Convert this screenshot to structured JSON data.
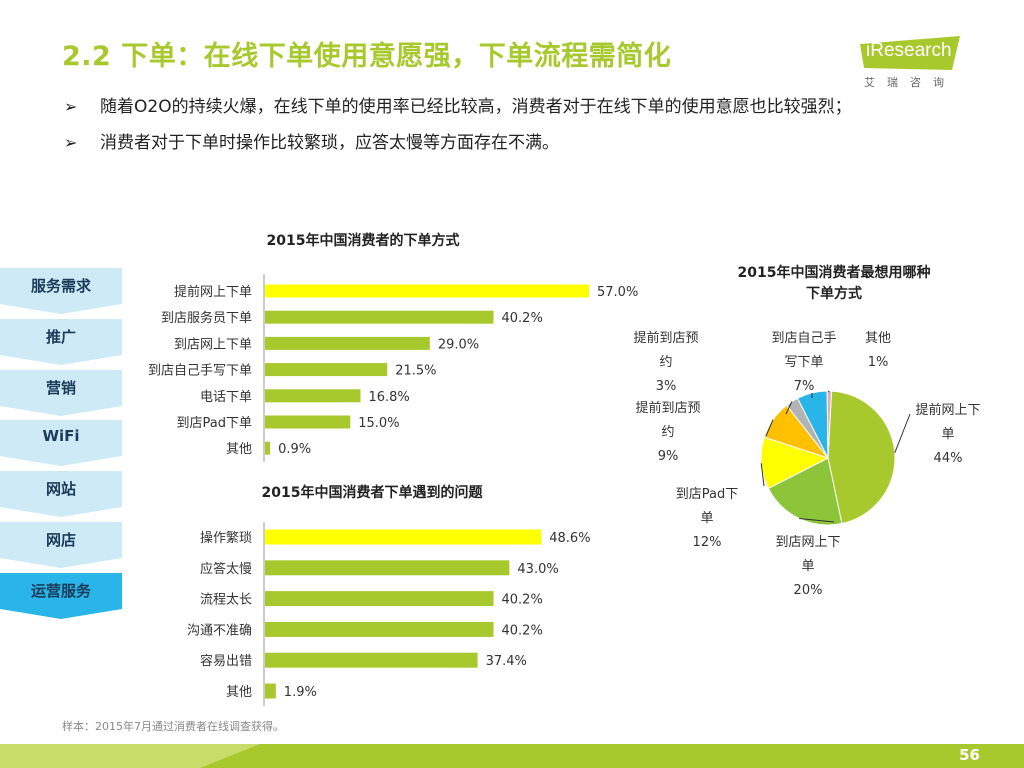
{
  "title": "2.2 下单：在线下单使用意愿强，下单流程需简化",
  "logo": {
    "brand": "iResearch",
    "sub": "艾瑞咨询"
  },
  "bullets": [
    "随着O2O的持续火爆，在线下单的使用率已经比较高，消费者对于在线下单的使用意愿也比较强烈；",
    "消费者对于下单时操作比较繁琐，应答太慢等方面存在不满。"
  ],
  "sidebar": {
    "items": [
      "服务需求",
      "推广",
      "营销",
      "WiFi",
      "网站",
      "网店",
      "运营服务"
    ],
    "active_index": 6
  },
  "colors": {
    "green": "#a8c92e",
    "yellow": "#ffff00",
    "blue": "#29b5e8",
    "navy": "#1a3c5a",
    "pale_blue": "#cdeaf6"
  },
  "chart_data": [
    {
      "type": "bar",
      "orientation": "horizontal",
      "title": "2015年中国消费者的下单方式",
      "categories": [
        "提前网上下单",
        "到店服务员下单",
        "到店网上下单",
        "到店自己手写下单",
        "电话下单",
        "到店Pad下单",
        "其他"
      ],
      "values": [
        57.0,
        40.2,
        29.0,
        21.5,
        16.8,
        15.0,
        0.9
      ],
      "labels": [
        "57.0%",
        "40.2%",
        "29.0%",
        "21.5%",
        "16.8%",
        "15.0%",
        "0.9%"
      ],
      "highlight_index": 0,
      "xlim": [
        0,
        57.0
      ]
    },
    {
      "type": "bar",
      "orientation": "horizontal",
      "title": "2015年中国消费者下单遇到的问题",
      "categories": [
        "操作繁琐",
        "应答太慢",
        "流程太长",
        "沟通不准确",
        "容易出错",
        "其他"
      ],
      "values": [
        48.6,
        43.0,
        40.2,
        40.2,
        37.4,
        1.9
      ],
      "labels": [
        "48.6%",
        "43.0%",
        "40.2%",
        "40.2%",
        "37.4%",
        "1.9%"
      ],
      "highlight_index": 0,
      "xlim": [
        0,
        57.0
      ]
    },
    {
      "type": "pie",
      "title": "2015年中国消费者最想用哪种下单方式",
      "slices": [
        {
          "name": "提前网上下单",
          "value": 44,
          "label": "44%",
          "color": "#a8c92e"
        },
        {
          "name": "到店网上下单",
          "value": 20,
          "label": "20%",
          "color": "#8cc43a"
        },
        {
          "name": "到店Pad下单",
          "value": 12,
          "label": "12%",
          "color": "#ffff00"
        },
        {
          "name": "提前到店预约",
          "value": 9,
          "label": "9%",
          "color": "#ffc000"
        },
        {
          "name": "提前到店预约",
          "value": 3,
          "label": "3%",
          "color": "#b3b3b3"
        },
        {
          "name": "到店自己手写下单",
          "value": 7,
          "label": "7%",
          "color": "#29b5e8"
        },
        {
          "name": "其他",
          "value": 1,
          "label": "1%",
          "color": "#e8a8b8"
        }
      ]
    }
  ],
  "footnote": "样本：2015年7月通过消费者在线调查获得。",
  "page_number": "56"
}
